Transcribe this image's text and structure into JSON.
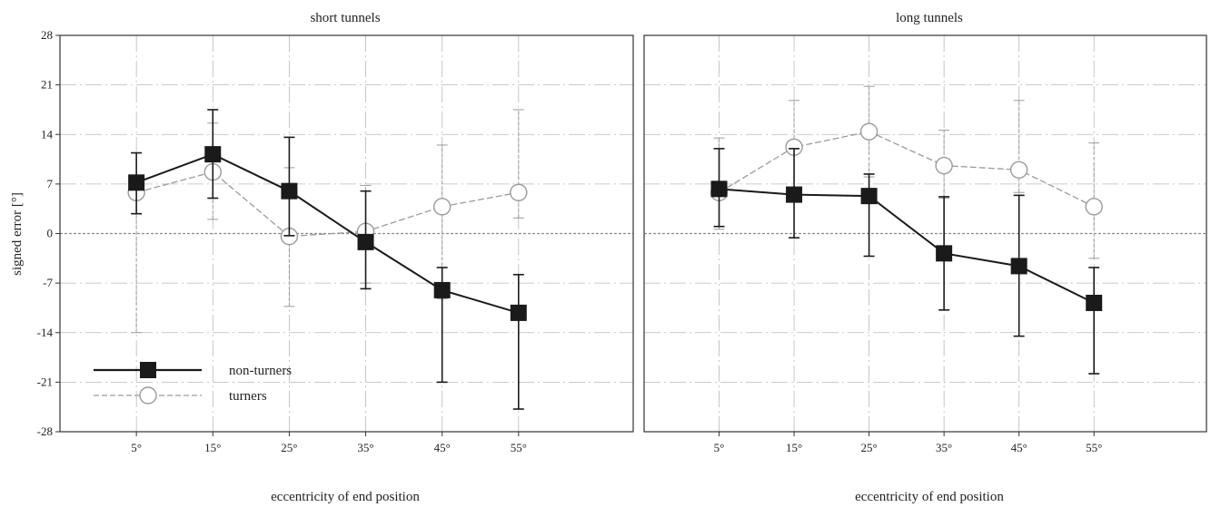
{
  "colors": {
    "non_turners": "#1a1a1a",
    "turners": "#9a9a9a",
    "grid": "#b8b8b8",
    "axis": "#333333"
  },
  "legend": {
    "position": "bottom-left of left panel",
    "items": [
      {
        "label": "non-turners",
        "marker": "filled-square",
        "line": "solid"
      },
      {
        "label": "turners",
        "marker": "open-circle",
        "line": "dashed"
      }
    ]
  },
  "chart_data": [
    {
      "type": "line",
      "title": "short tunnels",
      "xlabel": "eccentricity of end position",
      "ylabel": "signed error [°]",
      "categories": [
        "5°",
        "15°",
        "25°",
        "35°",
        "45°",
        "55°"
      ],
      "ylim": [
        -28,
        28
      ],
      "yticks": [
        28,
        21,
        14,
        7,
        0,
        -7,
        -14,
        -21,
        -28
      ],
      "grid": true,
      "series": [
        {
          "name": "non-turners",
          "values": [
            7.2,
            11.2,
            6.0,
            -1.2,
            -8.0,
            -11.2
          ],
          "error_low": [
            2.8,
            5.0,
            -0.3,
            -7.8,
            -21.0,
            -24.8
          ],
          "error_high": [
            11.4,
            17.5,
            13.6,
            6.0,
            -4.8,
            -5.8
          ]
        },
        {
          "name": "turners",
          "values": [
            5.8,
            8.7,
            -0.4,
            0.3,
            3.8,
            5.8
          ],
          "error_low": [
            -14.0,
            2.0,
            -10.3,
            -7.0,
            -9.2,
            2.2
          ],
          "error_high": [
            11.4,
            15.6,
            9.3,
            6.8,
            12.5,
            17.5
          ]
        }
      ]
    },
    {
      "type": "line",
      "title": "long tunnels",
      "xlabel": "eccentricity of end position",
      "ylabel": "",
      "categories": [
        "5°",
        "15°",
        "25°",
        "35°",
        "45°",
        "55°"
      ],
      "ylim": [
        -28,
        28
      ],
      "yticks": [],
      "grid": true,
      "series": [
        {
          "name": "non-turners",
          "values": [
            6.3,
            5.5,
            5.3,
            -2.8,
            -4.6,
            -9.8
          ],
          "error_low": [
            1.0,
            -0.6,
            -3.2,
            -10.8,
            -14.5,
            -19.8
          ],
          "error_high": [
            12.0,
            12.0,
            8.4,
            5.2,
            5.4,
            -4.8
          ]
        },
        {
          "name": "turners",
          "values": [
            5.8,
            12.2,
            14.4,
            9.6,
            9.0,
            3.8
          ],
          "error_low": [
            0.6,
            5.0,
            8.0,
            5.0,
            5.8,
            -3.5
          ],
          "error_high": [
            13.5,
            18.8,
            20.8,
            14.6,
            18.8,
            12.8
          ]
        }
      ]
    }
  ]
}
